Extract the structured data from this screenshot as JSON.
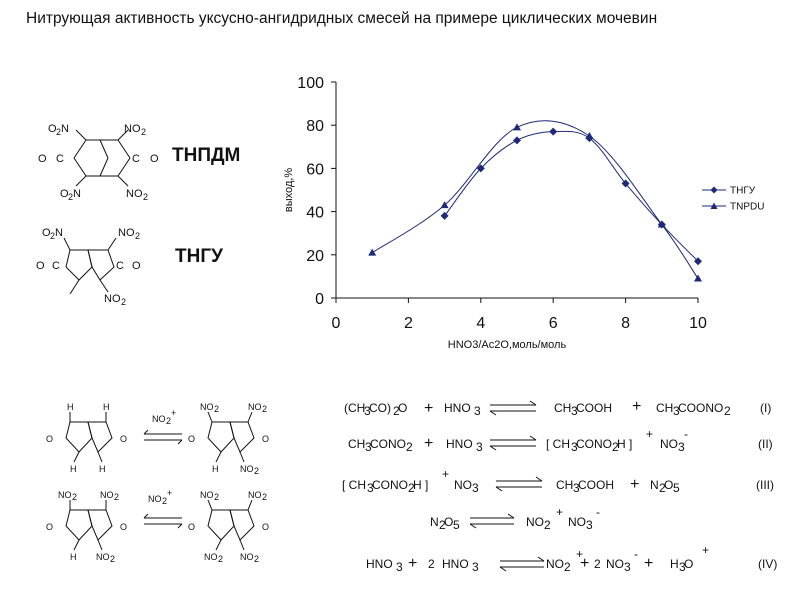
{
  "title": "Нитрующая активность уксусно-ангидридных смесей на примере циклических мочевин",
  "compounds": {
    "tnpdm": "ТНПДМ",
    "tngu": "ТНГУ"
  },
  "chart_data": {
    "type": "line",
    "xlabel": "HNO3/Ac2O,моль/моль",
    "ylabel": "выход,%",
    "xlim": [
      0,
      10
    ],
    "ylim": [
      0,
      100
    ],
    "xticks": [
      0,
      2,
      4,
      6,
      8,
      10
    ],
    "yticks": [
      0,
      20,
      40,
      60,
      80,
      100
    ],
    "legend_position": "right",
    "series": [
      {
        "name": "ТНГУ",
        "marker": "diamond",
        "color": "#1e2a78",
        "points": [
          [
            3,
            38
          ],
          [
            4,
            60
          ],
          [
            5,
            73
          ],
          [
            6,
            77
          ],
          [
            7,
            74
          ],
          [
            8,
            53
          ],
          [
            9,
            34
          ],
          [
            10,
            17
          ]
        ]
      },
      {
        "name": "TNPDU",
        "marker": "triangle",
        "color": "#1e2a78",
        "points": [
          [
            1,
            21
          ],
          [
            3,
            43
          ],
          [
            5,
            79
          ],
          [
            7,
            75
          ],
          [
            9,
            34
          ],
          [
            10,
            9
          ]
        ]
      }
    ]
  },
  "equations": {
    "eq1_label": "(I)",
    "eq2_label": "(II)",
    "eq3_label": "(III)",
    "eq4_label": "(IV)"
  },
  "colors": {
    "series": "#1e2a78"
  }
}
